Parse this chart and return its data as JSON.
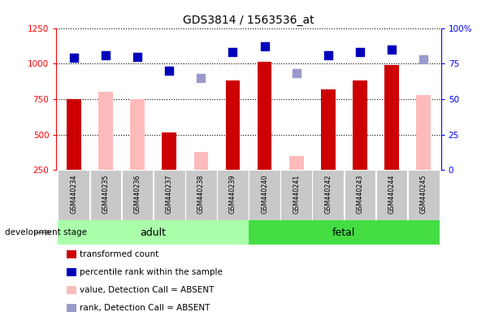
{
  "title": "GDS3814 / 1563536_at",
  "samples": [
    "GSM440234",
    "GSM440235",
    "GSM440236",
    "GSM440237",
    "GSM440238",
    "GSM440239",
    "GSM440240",
    "GSM440241",
    "GSM440242",
    "GSM440243",
    "GSM440244",
    "GSM440245"
  ],
  "n_adult": 6,
  "n_fetal": 6,
  "transformed_count": [
    750,
    null,
    null,
    515,
    null,
    880,
    1010,
    null,
    820,
    880,
    990,
    null
  ],
  "absent_value": [
    null,
    800,
    750,
    null,
    380,
    null,
    null,
    350,
    null,
    null,
    null,
    780
  ],
  "percentile_rank_pct": [
    79,
    81,
    80,
    70,
    null,
    83,
    87,
    null,
    81,
    83,
    85,
    null
  ],
  "absent_rank_pct": [
    null,
    null,
    null,
    null,
    65,
    null,
    null,
    68,
    null,
    null,
    null,
    78
  ],
  "ylim_left": [
    250,
    1250
  ],
  "ylim_right": [
    0,
    100
  ],
  "yticks_left": [
    250,
    500,
    750,
    1000,
    1250
  ],
  "yticks_right": [
    0,
    25,
    50,
    75,
    100
  ],
  "bar_color_red": "#cc0000",
  "bar_color_pink": "#ffbbbb",
  "dot_color_blue": "#0000bb",
  "dot_color_lightblue": "#9999cc",
  "adult_bg": "#aaffaa",
  "fetal_bg": "#44dd44",
  "stage_label_adult": "adult",
  "stage_label_fetal": "fetal",
  "development_stage_label": "development stage",
  "legend_items": [
    {
      "label": "transformed count",
      "color": "#cc0000"
    },
    {
      "label": "percentile rank within the sample",
      "color": "#0000bb"
    },
    {
      "label": "value, Detection Call = ABSENT",
      "color": "#ffbbbb"
    },
    {
      "label": "rank, Detection Call = ABSENT",
      "color": "#9999cc"
    }
  ],
  "background_color": "#ffffff"
}
